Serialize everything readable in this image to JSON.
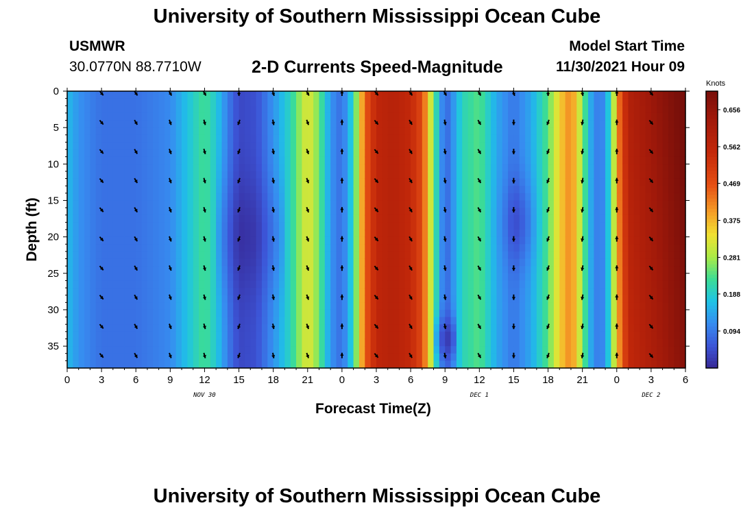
{
  "title": "University of Southern Mississippi Ocean Cube",
  "title_repeat": "University of Southern Mississippi Ocean Cube",
  "station": {
    "name": "USMWR",
    "coords": "30.0770N  88.7710W"
  },
  "plot_title": "2-D Currents Speed-Magnitude",
  "model_start": {
    "label": "Model Start Time",
    "value": "11/30/2021 Hour 09"
  },
  "chart_data": {
    "type": "heatmap",
    "title": "2-D Currents Speed-Magnitude",
    "xlabel": "Forecast Time(Z)",
    "ylabel": "Depth (ft)",
    "x_ticks": [
      "0",
      "3",
      "6",
      "9",
      "12",
      "15",
      "18",
      "21",
      "0",
      "3",
      "6",
      "9",
      "12",
      "15",
      "18",
      "21",
      "0",
      "3",
      "6"
    ],
    "x_range_hours": [
      0,
      54
    ],
    "date_labels": [
      {
        "text": "NOV 30",
        "hour": 12
      },
      {
        "text": "DEC 1",
        "hour": 36
      },
      {
        "text": "DEC 2",
        "hour": 51
      }
    ],
    "y_ticks": [
      "0",
      "5",
      "10",
      "15",
      "20",
      "25",
      "30",
      "35"
    ],
    "y_range": [
      0,
      38
    ],
    "colorbar": {
      "label": "Knots",
      "min": 0.0,
      "max": 0.703,
      "ticks": [
        "0.656",
        "0.562",
        "0.469",
        "0.375",
        "0.281",
        "0.188",
        "0.094"
      ],
      "tick_values": [
        0.656,
        0.562,
        0.469,
        0.375,
        0.281,
        0.188,
        0.094
      ]
    },
    "speed_profile_knots": [
      {
        "hour": 0,
        "value": 0.16
      },
      {
        "hour": 1,
        "value": 0.12
      },
      {
        "hour": 2,
        "value": 0.1
      },
      {
        "hour": 3,
        "value": 0.085
      },
      {
        "hour": 6,
        "value": 0.085
      },
      {
        "hour": 9,
        "value": 0.11
      },
      {
        "hour": 10.5,
        "value": 0.17
      },
      {
        "hour": 12,
        "value": 0.23
      },
      {
        "hour": 13,
        "value": 0.18
      },
      {
        "hour": 14,
        "value": 0.1
      },
      {
        "hour": 15,
        "value": 0.04
      },
      {
        "hour": 16.5,
        "value": 0.05
      },
      {
        "hour": 18,
        "value": 0.12
      },
      {
        "hour": 19.5,
        "value": 0.2
      },
      {
        "hour": 21,
        "value": 0.33
      },
      {
        "hour": 22,
        "value": 0.25
      },
      {
        "hour": 23,
        "value": 0.12
      },
      {
        "hour": 24,
        "value": 0.08
      },
      {
        "hour": 25,
        "value": 0.2
      },
      {
        "hour": 26,
        "value": 0.45
      },
      {
        "hour": 27,
        "value": 0.56
      },
      {
        "hour": 28.5,
        "value": 0.58
      },
      {
        "hour": 30,
        "value": 0.55
      },
      {
        "hour": 31,
        "value": 0.48
      },
      {
        "hour": 31.8,
        "value": 0.3
      },
      {
        "hour": 32.5,
        "value": 0.15
      },
      {
        "hour": 33,
        "value": 0.07
      },
      {
        "hour": 33.5,
        "value": 0.1
      },
      {
        "hour": 34.5,
        "value": 0.2
      },
      {
        "hour": 36,
        "value": 0.24
      },
      {
        "hour": 37.5,
        "value": 0.14
      },
      {
        "hour": 39,
        "value": 0.09
      },
      {
        "hour": 40.5,
        "value": 0.14
      },
      {
        "hour": 42,
        "value": 0.24
      },
      {
        "hour": 43,
        "value": 0.35
      },
      {
        "hour": 44,
        "value": 0.42
      },
      {
        "hour": 44.8,
        "value": 0.3
      },
      {
        "hour": 45.5,
        "value": 0.18
      },
      {
        "hour": 46,
        "value": 0.1
      },
      {
        "hour": 47,
        "value": 0.11
      },
      {
        "hour": 47.5,
        "value": 0.24
      },
      {
        "hour": 48.2,
        "value": 0.4
      },
      {
        "hour": 49,
        "value": 0.55
      },
      {
        "hour": 51,
        "value": 0.6
      },
      {
        "hour": 54,
        "value": 0.68
      }
    ],
    "arrows": {
      "hours": [
        3,
        6,
        9,
        12,
        15,
        18,
        21,
        24,
        27,
        30,
        33,
        36,
        39,
        42,
        45,
        48,
        51
      ],
      "depths": [
        0,
        4,
        8,
        12,
        16,
        20,
        24,
        28,
        32,
        36
      ],
      "direction_deg_by_hour": [
        140,
        150,
        160,
        165,
        200,
        170,
        160,
        0,
        140,
        150,
        170,
        150,
        180,
        200,
        190,
        0,
        140
      ],
      "direction_deg_surface": [
        140,
        145,
        150,
        150,
        180,
        160,
        150,
        0,
        140,
        145,
        150,
        150,
        160,
        180,
        170,
        0,
        140
      ]
    }
  }
}
